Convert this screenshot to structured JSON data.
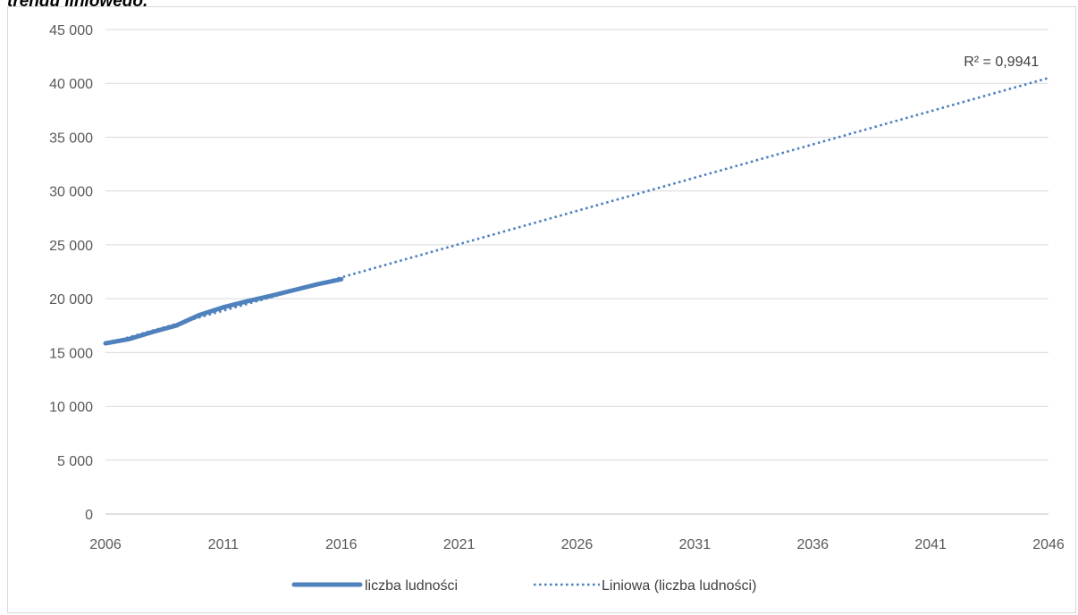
{
  "heading": "trendu liniowego.",
  "chart_data": {
    "type": "line",
    "title": "",
    "xlabel": "",
    "ylabel": "",
    "xlim": [
      2006,
      2046
    ],
    "ylim": [
      0,
      45000
    ],
    "x_ticks": [
      2006,
      2011,
      2016,
      2021,
      2026,
      2031,
      2036,
      2041,
      2046
    ],
    "y_ticks": [
      0,
      5000,
      10000,
      15000,
      20000,
      25000,
      30000,
      35000,
      40000,
      45000
    ],
    "x_tick_labels": [
      "2006",
      "2011",
      "2016",
      "2021",
      "2026",
      "2031",
      "2036",
      "2041",
      "2046"
    ],
    "y_tick_labels": [
      "0",
      "5 000",
      "10 000",
      "15 000",
      "20 000",
      "25 000",
      "30 000",
      "35 000",
      "40 000",
      "45 000"
    ],
    "grid": "horizontal",
    "legend_position": "bottom",
    "series": [
      {
        "name": "liczba ludności",
        "style": "solid",
        "color": "#4f81bd",
        "x": [
          2006,
          2007,
          2008,
          2009,
          2010,
          2011,
          2012,
          2013,
          2014,
          2015,
          2016
        ],
        "y": [
          15850,
          16250,
          16900,
          17500,
          18500,
          19200,
          19750,
          20250,
          20800,
          21350,
          21800
        ]
      },
      {
        "name": "Liniowa (liczba ludności)",
        "style": "dotted",
        "color": "#4f81bd",
        "x": [
          2006,
          2046
        ],
        "y": [
          15800,
          40500
        ]
      }
    ],
    "annotations": [
      {
        "text": "R² = 0,9941",
        "x": 2044,
        "y": 41600
      }
    ]
  }
}
